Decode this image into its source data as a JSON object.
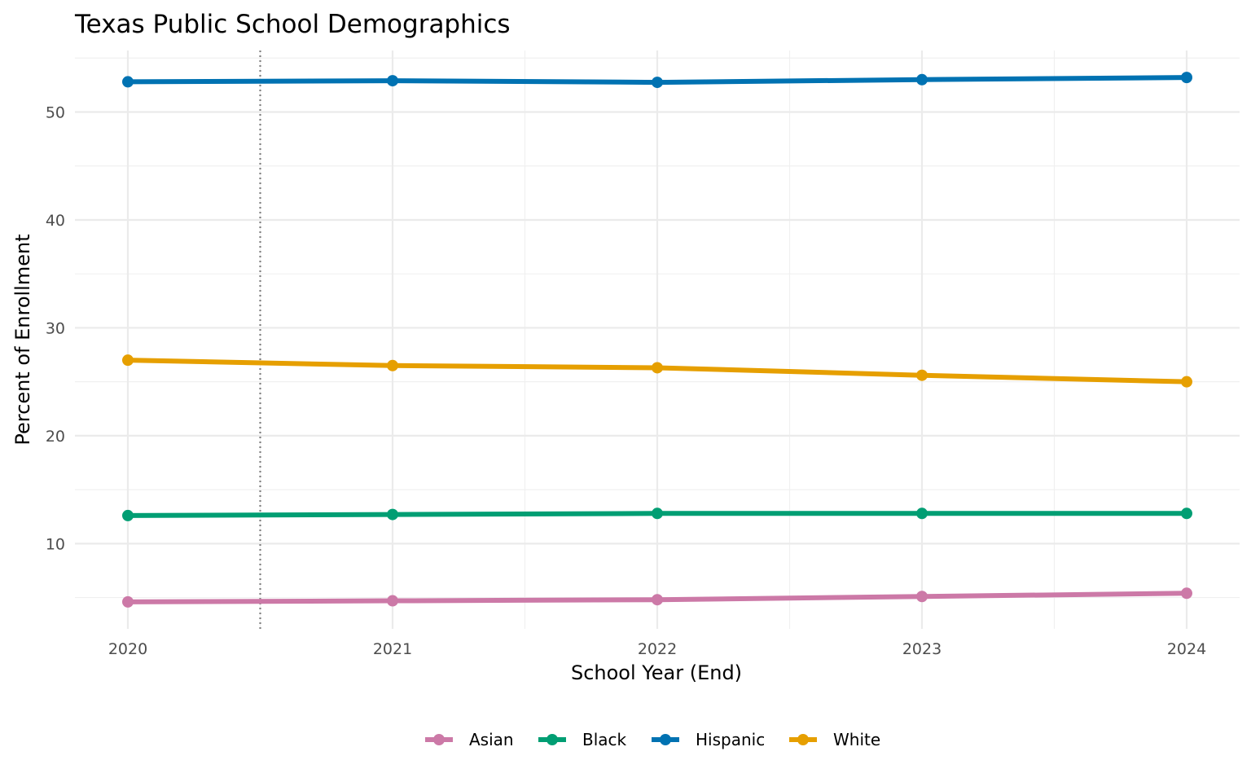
{
  "chart_data": {
    "type": "line",
    "title": "Texas Public School Demographics",
    "xlabel": "School Year (End)",
    "ylabel": "Percent of Enrollment",
    "x": [
      2020,
      2021,
      2022,
      2023,
      2024
    ],
    "xlim": [
      2019.8,
      2024.2
    ],
    "ylim": [
      2.1,
      55.7
    ],
    "yticks": [
      10,
      20,
      30,
      40,
      50
    ],
    "xticks": [
      2020,
      2021,
      2022,
      2023,
      2024
    ],
    "grid": true,
    "legend_position": "bottom",
    "reference_line": {
      "x": 2020.5,
      "style": "dotted"
    },
    "series": [
      {
        "name": "Asian",
        "color": "#CC79A7",
        "values": [
          4.6,
          4.7,
          4.8,
          5.1,
          5.4
        ]
      },
      {
        "name": "Black",
        "color": "#009E73",
        "values": [
          12.6,
          12.7,
          12.8,
          12.8,
          12.8
        ]
      },
      {
        "name": "Hispanic",
        "color": "#0072B2",
        "values": [
          52.8,
          52.9,
          52.75,
          53.0,
          53.2
        ]
      },
      {
        "name": "White",
        "color": "#E69F00",
        "values": [
          27.0,
          26.5,
          26.3,
          25.6,
          25.0
        ]
      }
    ]
  }
}
